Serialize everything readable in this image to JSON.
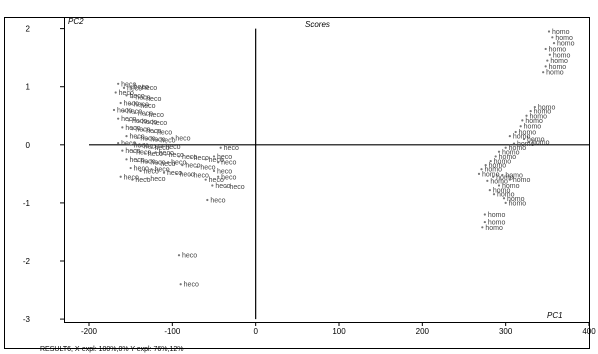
{
  "chart_data": {
    "type": "scatter",
    "title": "Scores",
    "xlabel": "PC1",
    "ylabel": "PC2",
    "xlim": [
      -230,
      400
    ],
    "ylim": [
      -3.05,
      2.2
    ],
    "x_ticks": [
      -200,
      -100,
      0,
      100,
      200,
      300,
      400
    ],
    "y_ticks": [
      2,
      1,
      0,
      -1,
      -2,
      -3
    ],
    "zero_lines": true,
    "grid": false,
    "legend": "none",
    "point_color": "#777777",
    "label_color": "#444444",
    "series": [
      {
        "label": "heco",
        "points": [
          [
            -165,
            1.05
          ],
          [
            -158,
            0.98
          ],
          [
            -150,
            1.0
          ],
          [
            -140,
            0.99
          ],
          [
            -168,
            0.9
          ],
          [
            -155,
            0.85
          ],
          [
            -148,
            0.82
          ],
          [
            -135,
            0.8
          ],
          [
            -162,
            0.72
          ],
          [
            -150,
            0.7
          ],
          [
            -142,
            0.68
          ],
          [
            -170,
            0.6
          ],
          [
            -158,
            0.58
          ],
          [
            -145,
            0.55
          ],
          [
            -132,
            0.52
          ],
          [
            -165,
            0.45
          ],
          [
            -152,
            0.42
          ],
          [
            -140,
            0.4
          ],
          [
            -128,
            0.38
          ],
          [
            -160,
            0.3
          ],
          [
            -148,
            0.27
          ],
          [
            -135,
            0.25
          ],
          [
            -122,
            0.22
          ],
          [
            -155,
            0.15
          ],
          [
            -142,
            0.12
          ],
          [
            -130,
            0.1
          ],
          [
            -118,
            0.08
          ],
          [
            -100,
            0.12
          ],
          [
            -165,
            0.03
          ],
          [
            -150,
            0.0
          ],
          [
            -138,
            -0.02
          ],
          [
            -125,
            -0.05
          ],
          [
            -112,
            -0.03
          ],
          [
            -160,
            -0.1
          ],
          [
            -147,
            -0.12
          ],
          [
            -133,
            -0.15
          ],
          [
            -120,
            -0.13
          ],
          [
            -108,
            -0.17
          ],
          [
            -92,
            -0.2
          ],
          [
            -78,
            -0.22
          ],
          [
            -155,
            -0.25
          ],
          [
            -142,
            -0.28
          ],
          [
            -130,
            -0.3
          ],
          [
            -118,
            -0.32
          ],
          [
            -105,
            -0.3
          ],
          [
            -88,
            -0.35
          ],
          [
            -70,
            -0.38
          ],
          [
            -60,
            -0.25
          ],
          [
            -50,
            -0.2
          ],
          [
            -42,
            -0.05
          ],
          [
            -45,
            -0.3
          ],
          [
            -150,
            -0.4
          ],
          [
            -138,
            -0.45
          ],
          [
            -125,
            -0.42
          ],
          [
            -110,
            -0.48
          ],
          [
            -95,
            -0.5
          ],
          [
            -78,
            -0.52
          ],
          [
            -50,
            -0.45
          ],
          [
            -45,
            -0.55
          ],
          [
            -162,
            -0.55
          ],
          [
            -148,
            -0.6
          ],
          [
            -130,
            -0.58
          ],
          [
            -60,
            -0.6
          ],
          [
            -52,
            -0.7
          ],
          [
            -35,
            -0.72
          ],
          [
            -58,
            -0.95
          ],
          [
            -92,
            -1.9
          ],
          [
            -90,
            -2.4
          ]
        ]
      },
      {
        "label": "homo",
        "points": [
          [
            352,
            1.95
          ],
          [
            356,
            1.85
          ],
          [
            358,
            1.75
          ],
          [
            348,
            1.65
          ],
          [
            353,
            1.55
          ],
          [
            350,
            1.45
          ],
          [
            348,
            1.35
          ],
          [
            345,
            1.25
          ],
          [
            335,
            0.65
          ],
          [
            330,
            0.58
          ],
          [
            325,
            0.5
          ],
          [
            320,
            0.42
          ],
          [
            318,
            0.32
          ],
          [
            312,
            0.22
          ],
          [
            305,
            0.15
          ],
          [
            322,
            0.1
          ],
          [
            328,
            0.05
          ],
          [
            310,
            0.02
          ],
          [
            300,
            -0.05
          ],
          [
            292,
            -0.12
          ],
          [
            288,
            -0.2
          ],
          [
            282,
            -0.28
          ],
          [
            276,
            -0.35
          ],
          [
            271,
            -0.42
          ],
          [
            268,
            -0.5
          ],
          [
            285,
            -0.55
          ],
          [
            296,
            -0.52
          ],
          [
            305,
            -0.6
          ],
          [
            278,
            -0.62
          ],
          [
            292,
            -0.7
          ],
          [
            281,
            -0.78
          ],
          [
            286,
            -0.85
          ],
          [
            298,
            -0.92
          ],
          [
            300,
            -1.0
          ],
          [
            275,
            -1.2
          ],
          [
            275,
            -1.33
          ],
          [
            272,
            -1.42
          ]
        ]
      }
    ]
  },
  "footer_text": "RESULT6, X-expl: 100%,0%  Y-expl: 76%,12%"
}
